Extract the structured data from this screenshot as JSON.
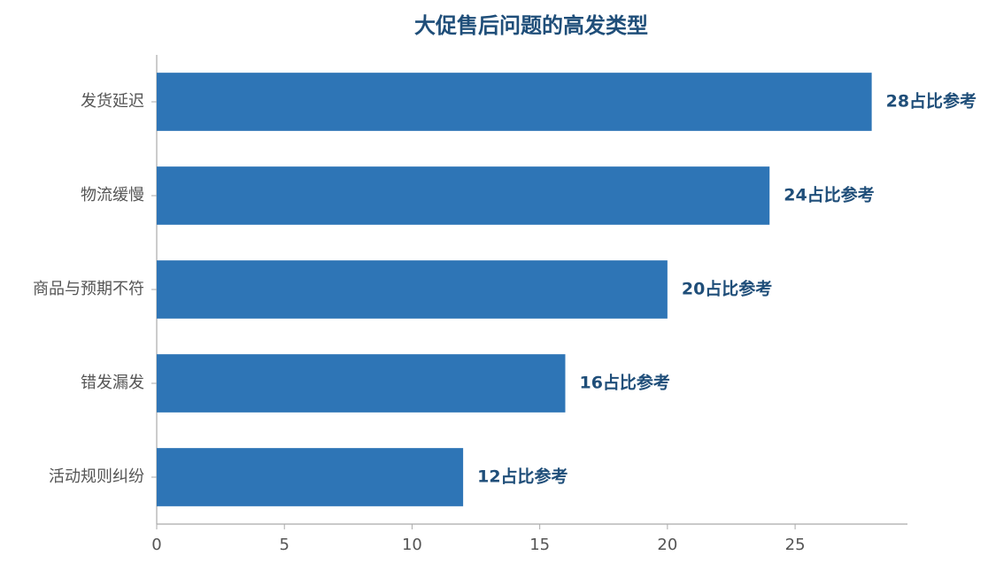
{
  "chart_data": {
    "type": "bar",
    "orientation": "horizontal",
    "title": "大促售后问题的高发类型",
    "categories": [
      "发货延迟",
      "物流缓慢",
      "商品与预期不符",
      "错发漏发",
      "活动规则纠纷"
    ],
    "values": [
      28,
      24,
      20,
      16,
      12
    ],
    "value_labels": [
      "28占比参考",
      "24占比参考",
      "20占比参考",
      "16占比参考",
      "12占比参考"
    ],
    "color": "#2e75b6",
    "xlim": [
      0,
      29.4
    ],
    "xticks": [
      0,
      5,
      10,
      15,
      20,
      25
    ],
    "grid": false
  }
}
